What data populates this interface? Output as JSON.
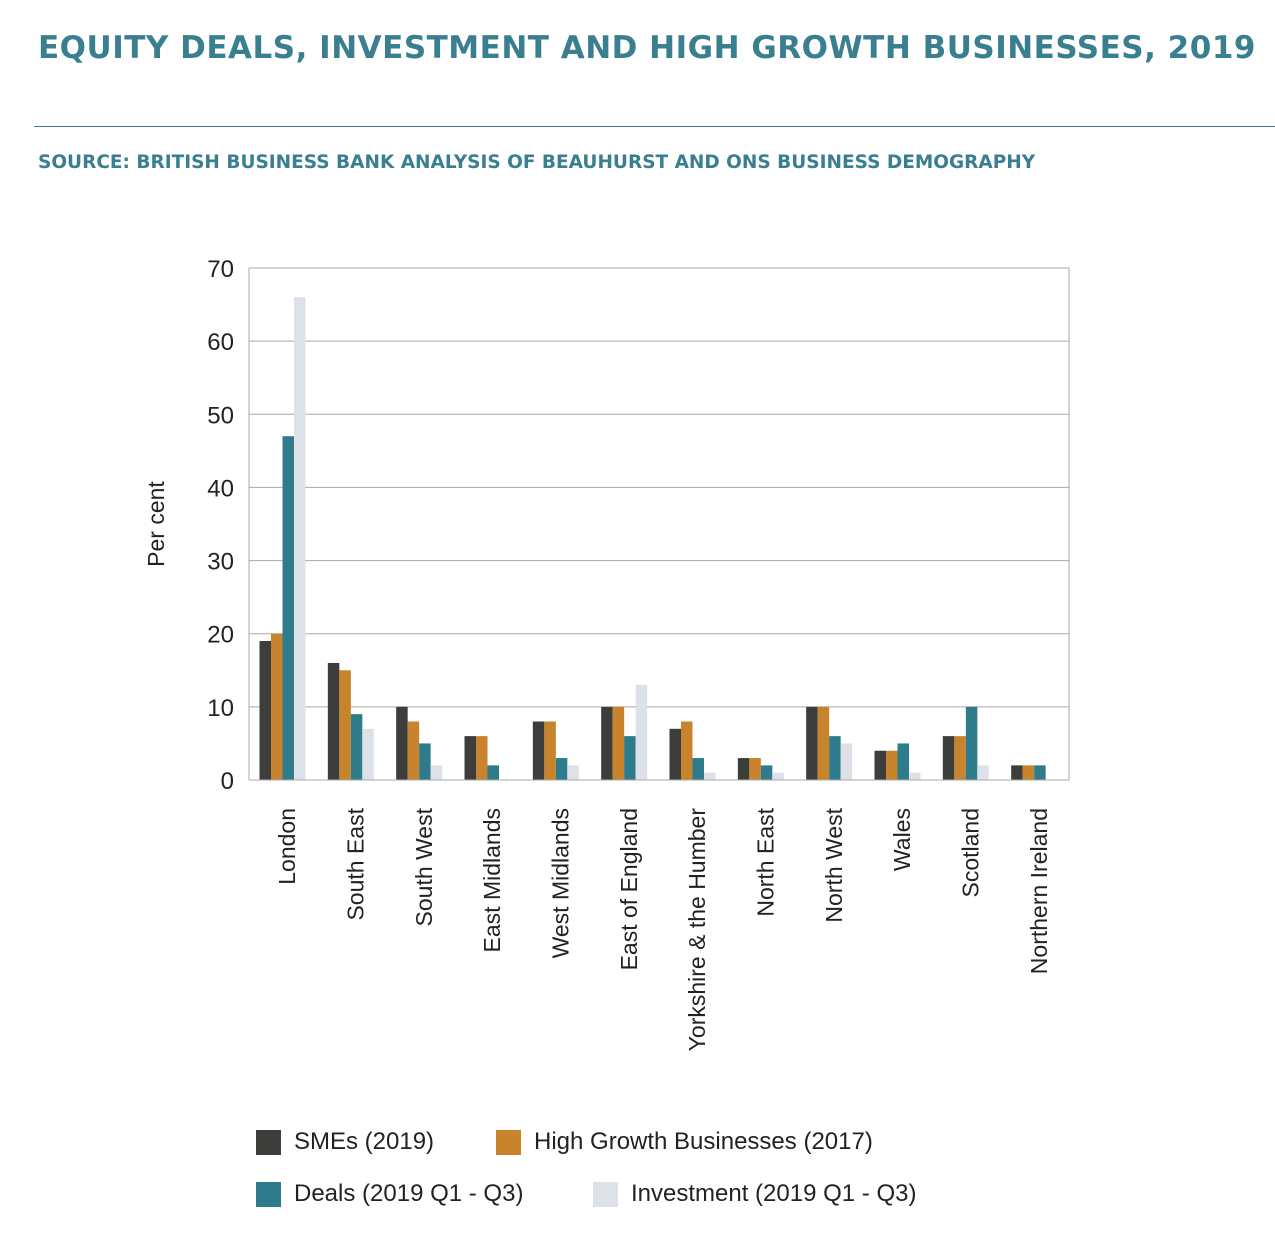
{
  "header": {
    "title": "EQUITY DEALS, INVESTMENT AND HIGH GROWTH BUSINESSES, 2019",
    "source": "SOURCE: BRITISH BUSINESS BANK ANALYSIS OF BEAUHURST AND ONS BUSINESS DEMOGRAPHY"
  },
  "chart_data": {
    "type": "bar",
    "title": "EQUITY DEALS, INVESTMENT AND HIGH GROWTH BUSINESSES, 2019",
    "ylabel": "Per cent",
    "xlabel": "",
    "ylim": [
      0,
      70
    ],
    "yticks": [
      0,
      10,
      20,
      30,
      40,
      50,
      60,
      70
    ],
    "grid": true,
    "legend_position": "bottom",
    "categories": [
      "London",
      "South East",
      "South West",
      "East Midlands",
      "West Midlands",
      "East of England",
      "Yorkshire & the Humber",
      "North East",
      "North West",
      "Wales",
      "Scotland",
      "Northern Ireland"
    ],
    "series": [
      {
        "name": "SMEs (2019)",
        "color": "#3d3d3b",
        "values": [
          19,
          16,
          10,
          6,
          8,
          10,
          7,
          3,
          10,
          4,
          6,
          2
        ]
      },
      {
        "name": "High Growth Businesses (2017)",
        "color": "#c8842c",
        "values": [
          20,
          15,
          8,
          6,
          8,
          10,
          8,
          3,
          10,
          4,
          6,
          2
        ]
      },
      {
        "name": "Deals (2019 Q1 - Q3)",
        "color": "#2e7b8c",
        "values": [
          47,
          9,
          5,
          2,
          3,
          6,
          3,
          2,
          6,
          5,
          10,
          2
        ]
      },
      {
        "name": "Investment (2019 Q1 - Q3)",
        "color": "#dde1e8",
        "values": [
          66,
          7,
          2,
          0,
          2,
          13,
          1,
          1,
          5,
          1,
          2,
          0
        ]
      }
    ]
  }
}
